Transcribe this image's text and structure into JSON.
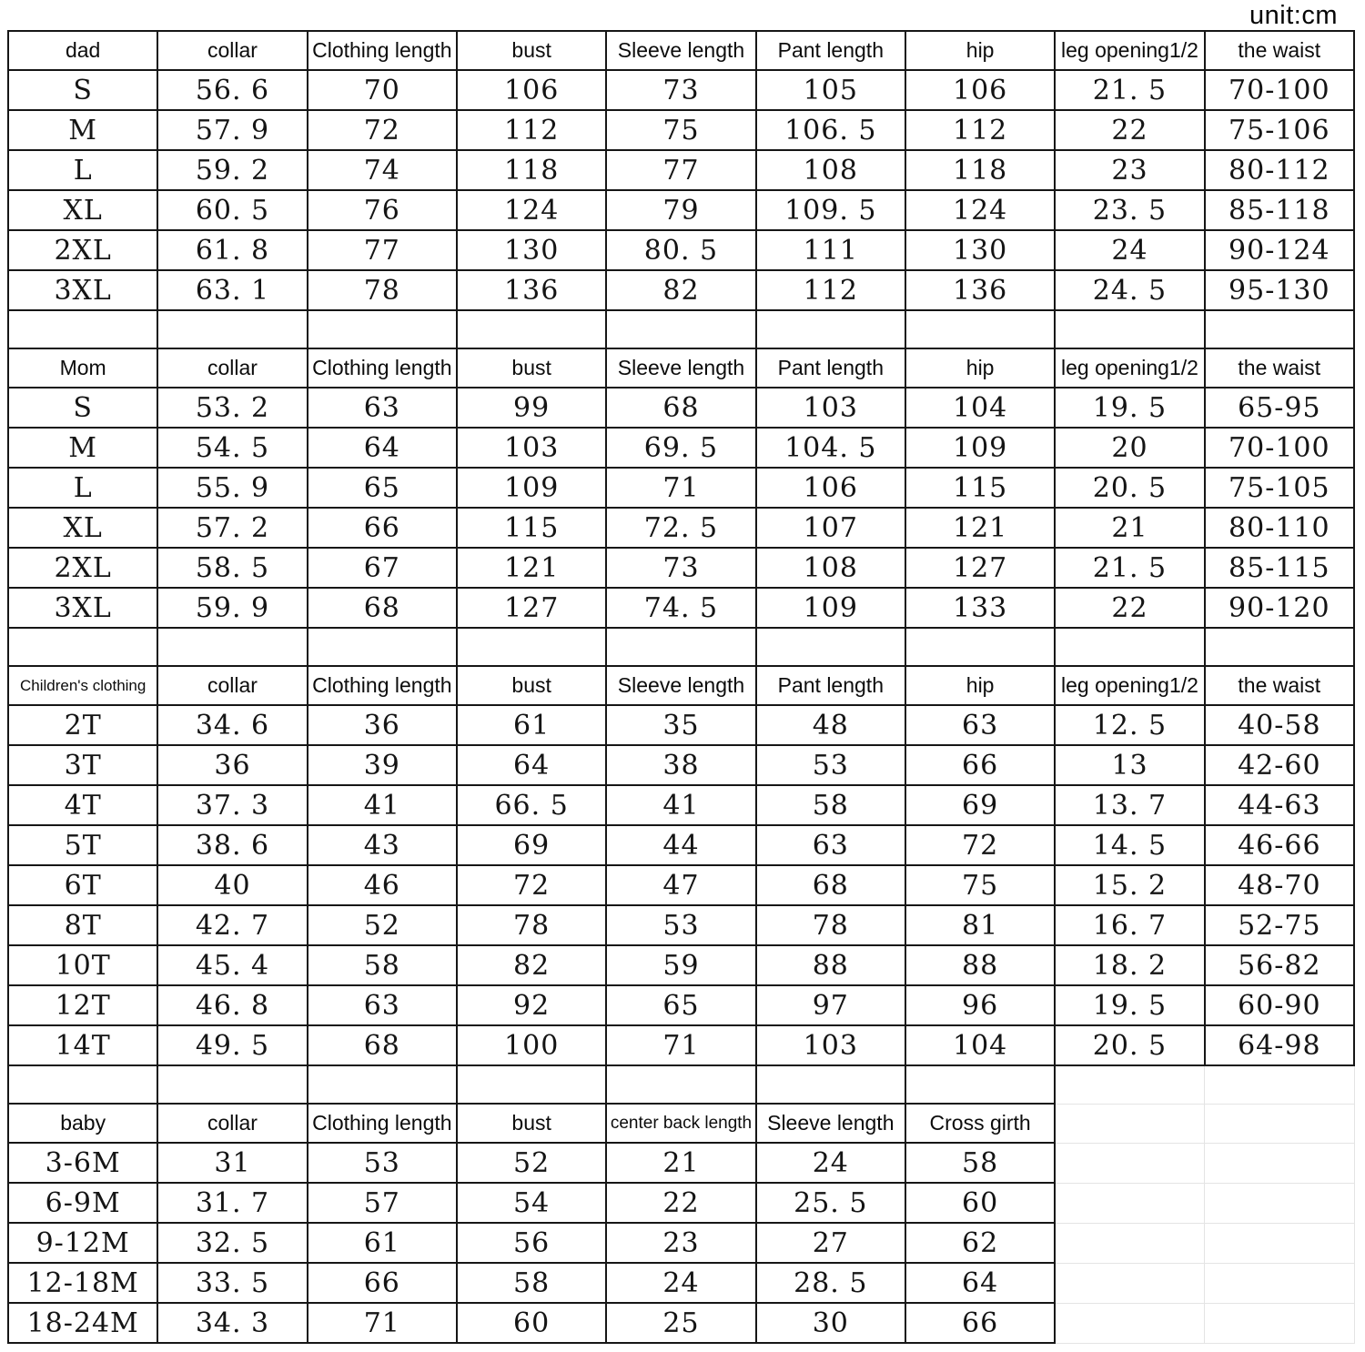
{
  "page": {
    "unit_label": "unit:cm"
  },
  "chart_data": [
    {
      "type": "table",
      "title": "dad",
      "columns": [
        "dad",
        "collar",
        "Clothing length",
        "bust",
        "Sleeve length",
        "Pant length",
        "hip",
        "leg opening1/2",
        "the waist"
      ],
      "rows": [
        [
          "S",
          "56. 6",
          "70",
          "106",
          "73",
          "105",
          "106",
          "21. 5",
          "70-100"
        ],
        [
          "M",
          "57. 9",
          "72",
          "112",
          "75",
          "106. 5",
          "112",
          "22",
          "75-106"
        ],
        [
          "L",
          "59. 2",
          "74",
          "118",
          "77",
          "108",
          "118",
          "23",
          "80-112"
        ],
        [
          "XL",
          "60. 5",
          "76",
          "124",
          "79",
          "109. 5",
          "124",
          "23. 5",
          "85-118"
        ],
        [
          "2XL",
          "61. 8",
          "77",
          "130",
          "80. 5",
          "111",
          "130",
          "24",
          "90-124"
        ],
        [
          "3XL",
          "63. 1",
          "78",
          "136",
          "82",
          "112",
          "136",
          "24. 5",
          "95-130"
        ]
      ]
    },
    {
      "type": "table",
      "title": "Mom",
      "columns": [
        "Mom",
        "collar",
        "Clothing length",
        "bust",
        "Sleeve length",
        "Pant length",
        "hip",
        "leg opening1/2",
        "the waist"
      ],
      "rows": [
        [
          "S",
          "53. 2",
          "63",
          "99",
          "68",
          "103",
          "104",
          "19. 5",
          "65-95"
        ],
        [
          "M",
          "54. 5",
          "64",
          "103",
          "69. 5",
          "104. 5",
          "109",
          "20",
          "70-100"
        ],
        [
          "L",
          "55. 9",
          "65",
          "109",
          "71",
          "106",
          "115",
          "20. 5",
          "75-105"
        ],
        [
          "XL",
          "57. 2",
          "66",
          "115",
          "72. 5",
          "107",
          "121",
          "21",
          "80-110"
        ],
        [
          "2XL",
          "58. 5",
          "67",
          "121",
          "73",
          "108",
          "127",
          "21. 5",
          "85-115"
        ],
        [
          "3XL",
          "59. 9",
          "68",
          "127",
          "74. 5",
          "109",
          "133",
          "22",
          "90-120"
        ]
      ]
    },
    {
      "type": "table",
      "title": "Children's clothing",
      "columns": [
        "Children's clothing",
        "collar",
        "Clothing length",
        "bust",
        "Sleeve length",
        "Pant length",
        "hip",
        "leg opening1/2",
        "the waist"
      ],
      "rows": [
        [
          "2T",
          "34. 6",
          "36",
          "61",
          "35",
          "48",
          "63",
          "12. 5",
          "40-58"
        ],
        [
          "3T",
          "36",
          "39",
          "64",
          "38",
          "53",
          "66",
          "13",
          "42-60"
        ],
        [
          "4T",
          "37. 3",
          "41",
          "66. 5",
          "41",
          "58",
          "69",
          "13. 7",
          "44-63"
        ],
        [
          "5T",
          "38. 6",
          "43",
          "69",
          "44",
          "63",
          "72",
          "14. 5",
          "46-66"
        ],
        [
          "6T",
          "40",
          "46",
          "72",
          "47",
          "68",
          "75",
          "15. 2",
          "48-70"
        ],
        [
          "8T",
          "42. 7",
          "52",
          "78",
          "53",
          "78",
          "81",
          "16. 7",
          "52-75"
        ],
        [
          "10T",
          "45. 4",
          "58",
          "82",
          "59",
          "88",
          "88",
          "18. 2",
          "56-82"
        ],
        [
          "12T",
          "46. 8",
          "63",
          "92",
          "65",
          "97",
          "96",
          "19. 5",
          "60-90"
        ],
        [
          "14T",
          "49. 5",
          "68",
          "100",
          "71",
          "103",
          "104",
          "20. 5",
          "64-98"
        ]
      ]
    },
    {
      "type": "table",
      "title": "baby",
      "columns": [
        "baby",
        "collar",
        "Clothing length",
        "bust",
        "center back length",
        "Sleeve length",
        "Cross girth"
      ],
      "rows": [
        [
          "3-6M",
          "31",
          "53",
          "52",
          "21",
          "24",
          "58"
        ],
        [
          "6-9M",
          "31. 7",
          "57",
          "54",
          "22",
          "25. 5",
          "60"
        ],
        [
          "9-12M",
          "32. 5",
          "61",
          "56",
          "23",
          "27",
          "62"
        ],
        [
          "12-18M",
          "33. 5",
          "66",
          "58",
          "24",
          "28. 5",
          "64"
        ],
        [
          "18-24M",
          "34. 3",
          "71",
          "60",
          "25",
          "30",
          "66"
        ]
      ]
    }
  ]
}
